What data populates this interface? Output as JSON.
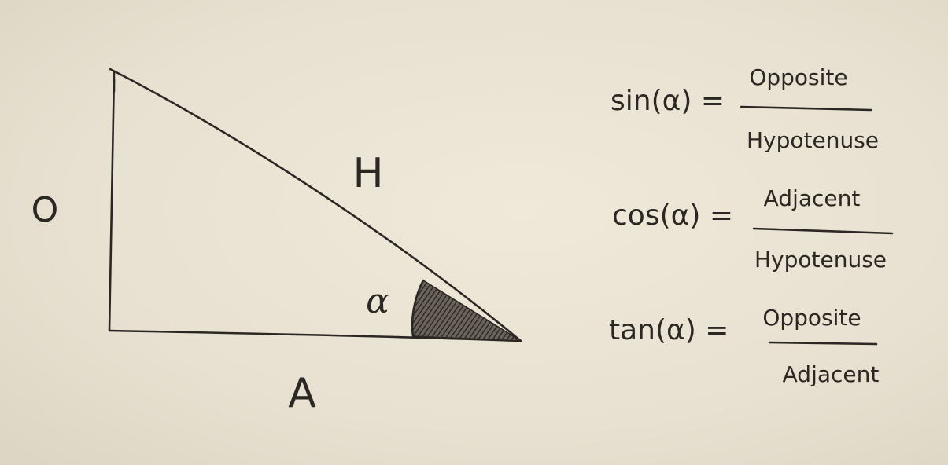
{
  "labels": {
    "opposite": "O",
    "hypotenuse": "H",
    "adjacent": "A",
    "angle": "α"
  },
  "formulas": {
    "sin": {
      "lhs": "sin(α) =",
      "numerator": "Opposite",
      "denominator": "Hypotenuse"
    },
    "cos": {
      "lhs": "cos(α) =",
      "numerator": "Adjacent",
      "denominator": "Hypotenuse"
    },
    "tan": {
      "lhs": "tan(α) =",
      "numerator": "Opposite",
      "denominator": "Adjacent"
    }
  },
  "colors": {
    "paper": "#e9e3d4",
    "ink": "#2b2722",
    "shading": "#3a3530"
  }
}
